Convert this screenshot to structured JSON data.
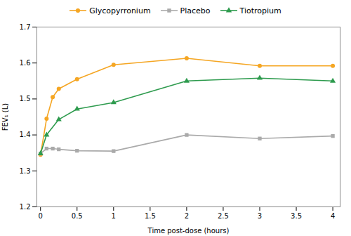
{
  "chart_data": {
    "type": "line",
    "xlabel": "Time post-dose (hours)",
    "ylabel": "FEV₁ (L)",
    "xlim": [
      -0.05,
      4.1
    ],
    "ylim": [
      1.2,
      1.7
    ],
    "xticks": [
      0,
      0.5,
      1.0,
      1.5,
      2.0,
      2.5,
      3.0,
      3.5,
      4.0
    ],
    "yticks": [
      1.2,
      1.3,
      1.4,
      1.5,
      1.6,
      1.7
    ],
    "grid": false,
    "legend": "top",
    "series": [
      {
        "name": "Glycopyrronium",
        "color": "#F5A623",
        "marker": "circle",
        "x": [
          0,
          0.083,
          0.167,
          0.25,
          0.5,
          1.0,
          2.0,
          3.0,
          4.0
        ],
        "values": [
          1.345,
          1.445,
          1.505,
          1.528,
          1.555,
          1.595,
          1.613,
          1.592,
          1.592
        ]
      },
      {
        "name": "Placebo",
        "color": "#AAAAAA",
        "marker": "square",
        "x": [
          0,
          0.083,
          0.167,
          0.25,
          0.5,
          1.0,
          2.0,
          3.0,
          4.0
        ],
        "values": [
          1.348,
          1.362,
          1.362,
          1.36,
          1.356,
          1.355,
          1.4,
          1.39,
          1.397
        ]
      },
      {
        "name": "Tiotropium",
        "color": "#2E9B4E",
        "marker": "triangle",
        "x": [
          0,
          0.083,
          0.25,
          0.5,
          1.0,
          2.0,
          3.0,
          4.0
        ],
        "values": [
          1.348,
          1.4,
          1.443,
          1.472,
          1.49,
          1.55,
          1.558,
          1.55
        ]
      }
    ]
  }
}
